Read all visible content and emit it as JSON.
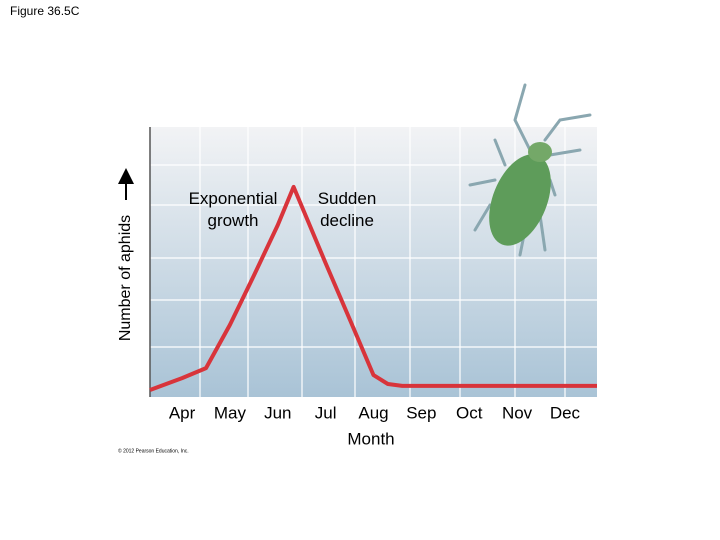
{
  "chart_data": {
    "type": "line",
    "title": "Figure 36.5C",
    "y_label": "Number of aphids",
    "x_label": "Month",
    "annotations": [
      "Exponential growth",
      "Sudden decline"
    ],
    "credit": "© 2012 Pearson Education, Inc.",
    "x": [
      3.33,
      4,
      4.5,
      5,
      5.5,
      6,
      6.33,
      7,
      7.5,
      8,
      8.3,
      8.6,
      9,
      10,
      11,
      12,
      12.67
    ],
    "values": [
      2.6,
      7,
      10.7,
      26.7,
      45,
      63.7,
      77.8,
      49.6,
      28.9,
      8.1,
      4.8,
      4.1,
      4.1,
      4.1,
      4.1,
      4.1,
      4.1
    ],
    "color": "#d8343b",
    "xlim": [
      3.33,
      12.67
    ],
    "ylim": [
      0,
      100
    ],
    "xticks": [
      {
        "value": 4,
        "label": "Apr"
      },
      {
        "value": 5,
        "label": "May"
      },
      {
        "value": 6,
        "label": "Jun"
      },
      {
        "value": 7,
        "label": "Jul"
      },
      {
        "value": 8,
        "label": "Aug"
      },
      {
        "value": 9,
        "label": "Sep"
      },
      {
        "value": 10,
        "label": "Oct"
      },
      {
        "value": 11,
        "label": "Nov"
      },
      {
        "value": 12,
        "label": "Dec"
      }
    ]
  }
}
